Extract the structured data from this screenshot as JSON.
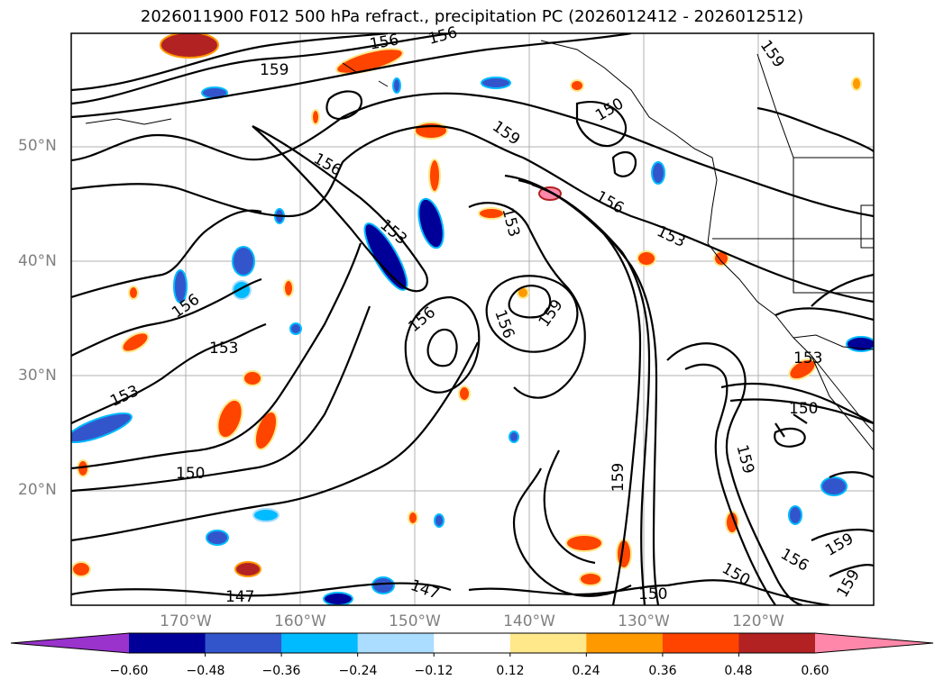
{
  "title": "2026011900 F012 500 hPa refract., precipitation PC (2026012412 - 2026012512)",
  "map": {
    "lat_labels": [
      "50°N",
      "40°N",
      "30°N",
      "20°N"
    ],
    "lon_labels": [
      "170°W",
      "160°W",
      "150°W",
      "140°W",
      "130°W",
      "120°W"
    ],
    "contour_labels": [
      "150",
      "156",
      "159",
      "159",
      "156",
      "153",
      "156",
      "159",
      "156",
      "153",
      "156",
      "153",
      "153",
      "156",
      "159",
      "153",
      "150",
      "153",
      "150",
      "147",
      "147",
      "159",
      "150",
      "150",
      "156",
      "159",
      "159",
      "156",
      "159"
    ]
  },
  "colorbar": {
    "ticks": [
      "−0.60",
      "−0.48",
      "−0.36",
      "−0.24",
      "−0.12",
      "0.12",
      "0.24",
      "0.36",
      "0.48",
      "0.60"
    ],
    "colors": [
      "#9933cc",
      "#000099",
      "#3355cc",
      "#00bbff",
      "#aaddff",
      "#ffffff",
      "#ffe88a",
      "#ff9900",
      "#ff4400",
      "#b22222",
      "#ff88aa"
    ]
  }
}
